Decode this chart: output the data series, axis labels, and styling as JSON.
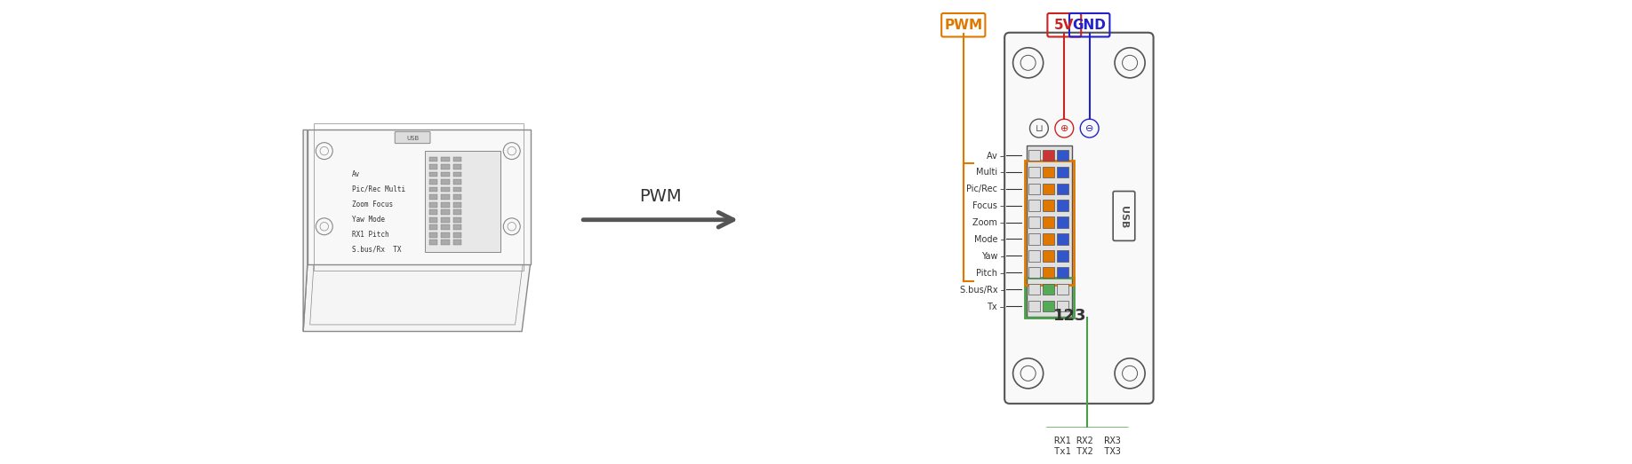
{
  "bg_color": "#ffffff",
  "connector_labels": [
    "Tx",
    "S.bus/Rx",
    "Pitch",
    "Yaw",
    "Mode",
    "Zoom",
    "Focus",
    "Pic/Rec",
    "Multi",
    "Av"
  ],
  "label_123": "123",
  "ttl_label": "RX1 RX2  RX3\nTx1 TX2  TX3",
  "pwm_label": "PWM",
  "fivev_label": "5V",
  "gnd_label": "GND",
  "pwm_text": "PWM",
  "green_color": "#4a9e4a",
  "orange_color": "#e07800",
  "red_color": "#cc2222",
  "blue_color": "#2222cc",
  "arrow_color": "#555555",
  "panel_border": "#555555",
  "device_color": "#888888",
  "text_color": "#333333",
  "pin_gray": "#bbbbbb",
  "pin_green": "#55aa55",
  "pin_orange": "#e07800",
  "pin_blue": "#3355cc",
  "pin_red": "#cc3333",
  "pin_bg": "#dddddd"
}
